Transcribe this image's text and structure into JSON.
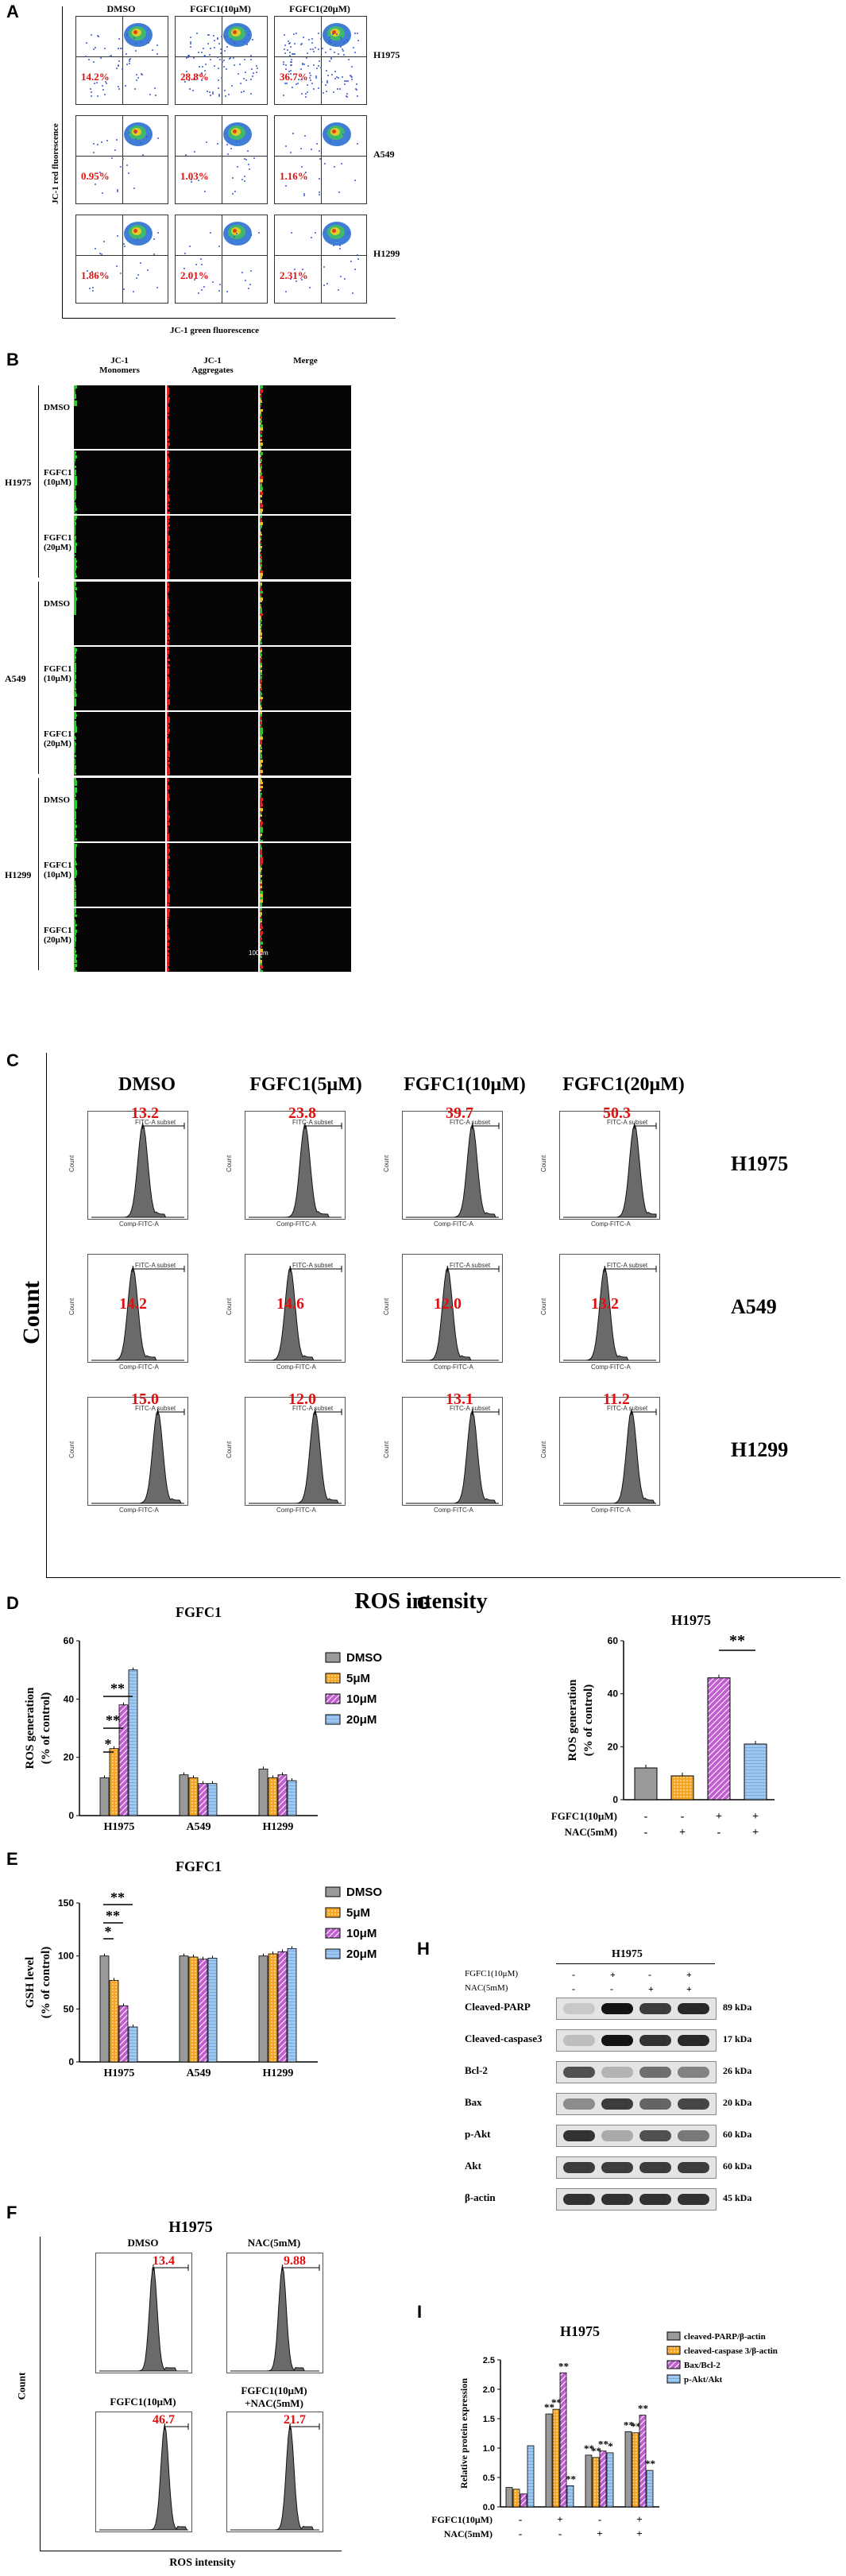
{
  "panelA": {
    "letter": "A",
    "columns": [
      "DMSO",
      "FGFC1(10μM)",
      "FGFC1(20μM)"
    ],
    "rows": [
      {
        "cell": "H1975",
        "values": [
          "14.2%",
          "28.8%",
          "36.7%"
        ]
      },
      {
        "cell": "A549",
        "values": [
          "0.95%",
          "1.03%",
          "1.16%"
        ]
      },
      {
        "cell": "H1299",
        "values": [
          "1.86%",
          "2.01%",
          "2.31%"
        ]
      }
    ],
    "ylabel": "JC-1 red fluorescence",
    "xlabel": "JC-1 green fluorescence"
  },
  "panelB": {
    "letter": "B",
    "columns": [
      "JC-1\nMonomers",
      "JC-1\nAggregates",
      "Merge"
    ],
    "groups": [
      {
        "cell": "H1975",
        "rows": [
          "DMSO",
          "FGFC1\n(10μM)",
          "FGFC1\n(20μM)"
        ]
      },
      {
        "cell": "A549",
        "rows": [
          "DMSO",
          "FGFC1\n(10μM)",
          "FGFC1\n(20μM)"
        ]
      },
      {
        "cell": "H1299",
        "rows": [
          "DMSO",
          "FGFC1\n(10μM)",
          "FGFC1\n(20μM)"
        ]
      }
    ],
    "scale": "100μm"
  },
  "panelC": {
    "letter": "C",
    "columns": [
      "DMSO",
      "FGFC1(5μM)",
      "FGFC1(10μM)",
      "FGFC1(20μM)"
    ],
    "rows": [
      {
        "cell": "H1975",
        "values": [
          "13.2",
          "23.8",
          "39.7",
          "50.3"
        ]
      },
      {
        "cell": "A549",
        "values": [
          "14.2",
          "14.6",
          "12.0",
          "13.2"
        ]
      },
      {
        "cell": "H1299",
        "values": [
          "15.0",
          "12.0",
          "13.1",
          "11.2"
        ]
      }
    ],
    "ylabel": "Count",
    "xlabel": "ROS intensity",
    "gate": "FITC-A subset",
    "axis": "Comp-FITC-A"
  },
  "chart_data": [
    {
      "panel": "D",
      "type": "bar",
      "title": "FGFC1",
      "ylabel": "ROS generation\n(% of control)",
      "categories": [
        "H1975",
        "A549",
        "H1299"
      ],
      "ylim": [
        0,
        60
      ],
      "yticks": [
        "0",
        "20",
        "40",
        "60"
      ],
      "series": [
        {
          "name": "DMSO",
          "values": [
            13,
            14,
            16
          ]
        },
        {
          "name": "5μM",
          "values": [
            23,
            13,
            13
          ]
        },
        {
          "name": "10μM",
          "values": [
            38,
            11,
            14
          ]
        },
        {
          "name": "20μM",
          "values": [
            50,
            11,
            12
          ]
        }
      ],
      "significance": [
        "*",
        "**",
        "**"
      ]
    },
    {
      "panel": "E",
      "type": "bar",
      "title": "FGFC1",
      "ylabel": "GSH level\n(% of control)",
      "categories": [
        "H1975",
        "A549",
        "H1299"
      ],
      "ylim": [
        0,
        150
      ],
      "yticks": [
        "0",
        "50",
        "100",
        "150"
      ],
      "series": [
        {
          "name": "DMSO",
          "values": [
            100,
            100,
            100
          ]
        },
        {
          "name": "5μM",
          "values": [
            77,
            99,
            102
          ]
        },
        {
          "name": "10μM",
          "values": [
            53,
            97,
            104
          ]
        },
        {
          "name": "20μM",
          "values": [
            33,
            98,
            107
          ]
        }
      ],
      "significance": [
        "*",
        "**",
        "**"
      ]
    },
    {
      "panel": "G",
      "type": "bar",
      "title": "H1975",
      "ylabel": "ROS generation\n(% of control)",
      "ylim": [
        0,
        60
      ],
      "yticks": [
        "0",
        "20",
        "40",
        "60"
      ],
      "values": [
        12,
        9,
        46,
        21
      ],
      "row_labels": [
        "FGFC1(10μM)",
        "NAC(5mM)"
      ],
      "conditions": [
        [
          "-",
          "-"
        ],
        [
          "-",
          "+"
        ],
        [
          "+",
          "-"
        ],
        [
          "+",
          "+"
        ]
      ],
      "significance": [
        "**"
      ]
    },
    {
      "panel": "I",
      "type": "bar",
      "title": "H1975",
      "ylabel": "Relative protein expression",
      "ylim": [
        0,
        2.5
      ],
      "yticks": [
        "0.0",
        "0.5",
        "1.0",
        "1.5",
        "2.0",
        "2.5"
      ],
      "series": [
        {
          "name": "cleaved-PARP/β-actin",
          "values": [
            0.33,
            1.58,
            0.88,
            1.28
          ]
        },
        {
          "name": "cleaved-caspase 3/β-actin",
          "values": [
            0.3,
            1.66,
            0.84,
            1.26
          ]
        },
        {
          "name": "Bax/Bcl-2",
          "values": [
            0.22,
            2.28,
            0.95,
            1.56
          ]
        },
        {
          "name": "p-Akt/Akt",
          "values": [
            1.04,
            0.36,
            0.92,
            0.62
          ]
        }
      ],
      "row_labels": [
        "FGFC1(10μM)",
        "NAC(5mM)"
      ],
      "conditions": [
        [
          "-",
          "-"
        ],
        [
          "+",
          "-"
        ],
        [
          "-",
          "+"
        ],
        [
          "+",
          "+"
        ]
      ],
      "significance": [
        "**",
        "*"
      ]
    }
  ],
  "panelD": {
    "letter": "D"
  },
  "panelE": {
    "letter": "E"
  },
  "panelF": {
    "letter": "F",
    "title": "H1975",
    "plots": [
      {
        "label": "DMSO",
        "value": "13.4"
      },
      {
        "label": "NAC(5mM)",
        "value": "9.88"
      },
      {
        "label": "FGFC1(10μM)",
        "value": "46.7"
      },
      {
        "label": "FGFC1(10μM)\n+NAC(5mM)",
        "value": "21.7"
      }
    ],
    "ylabel": "Count",
    "xlabel": "ROS intensity"
  },
  "panelG": {
    "letter": "G"
  },
  "panelH": {
    "letter": "H",
    "title": "H1975",
    "header_rows": [
      {
        "label": "FGFC1(10μM)",
        "signs": [
          "-",
          "+",
          "-",
          "+"
        ]
      },
      {
        "label": "NAC(5mM)",
        "signs": [
          "-",
          "-",
          "+",
          "+"
        ]
      }
    ],
    "blots": [
      {
        "protein": "Cleaved-PARP",
        "size": "89 kDa"
      },
      {
        "protein": "Cleaved-caspase3",
        "size": "17 kDa"
      },
      {
        "protein": "Bcl-2",
        "size": "26 kDa"
      },
      {
        "protein": "Bax",
        "size": "20 kDa"
      },
      {
        "protein": "p-Akt",
        "size": "60 kDa"
      },
      {
        "protein": "Akt",
        "size": "60 kDa"
      },
      {
        "protein": "β-actin",
        "size": "45 kDa"
      }
    ]
  },
  "panelI": {
    "letter": "I"
  },
  "colors": {
    "dmso": "#9a9a9a",
    "low": "#f5a623",
    "mid": "#c060d0",
    "high": "#9ec8f0",
    "significance": "#e01010"
  }
}
